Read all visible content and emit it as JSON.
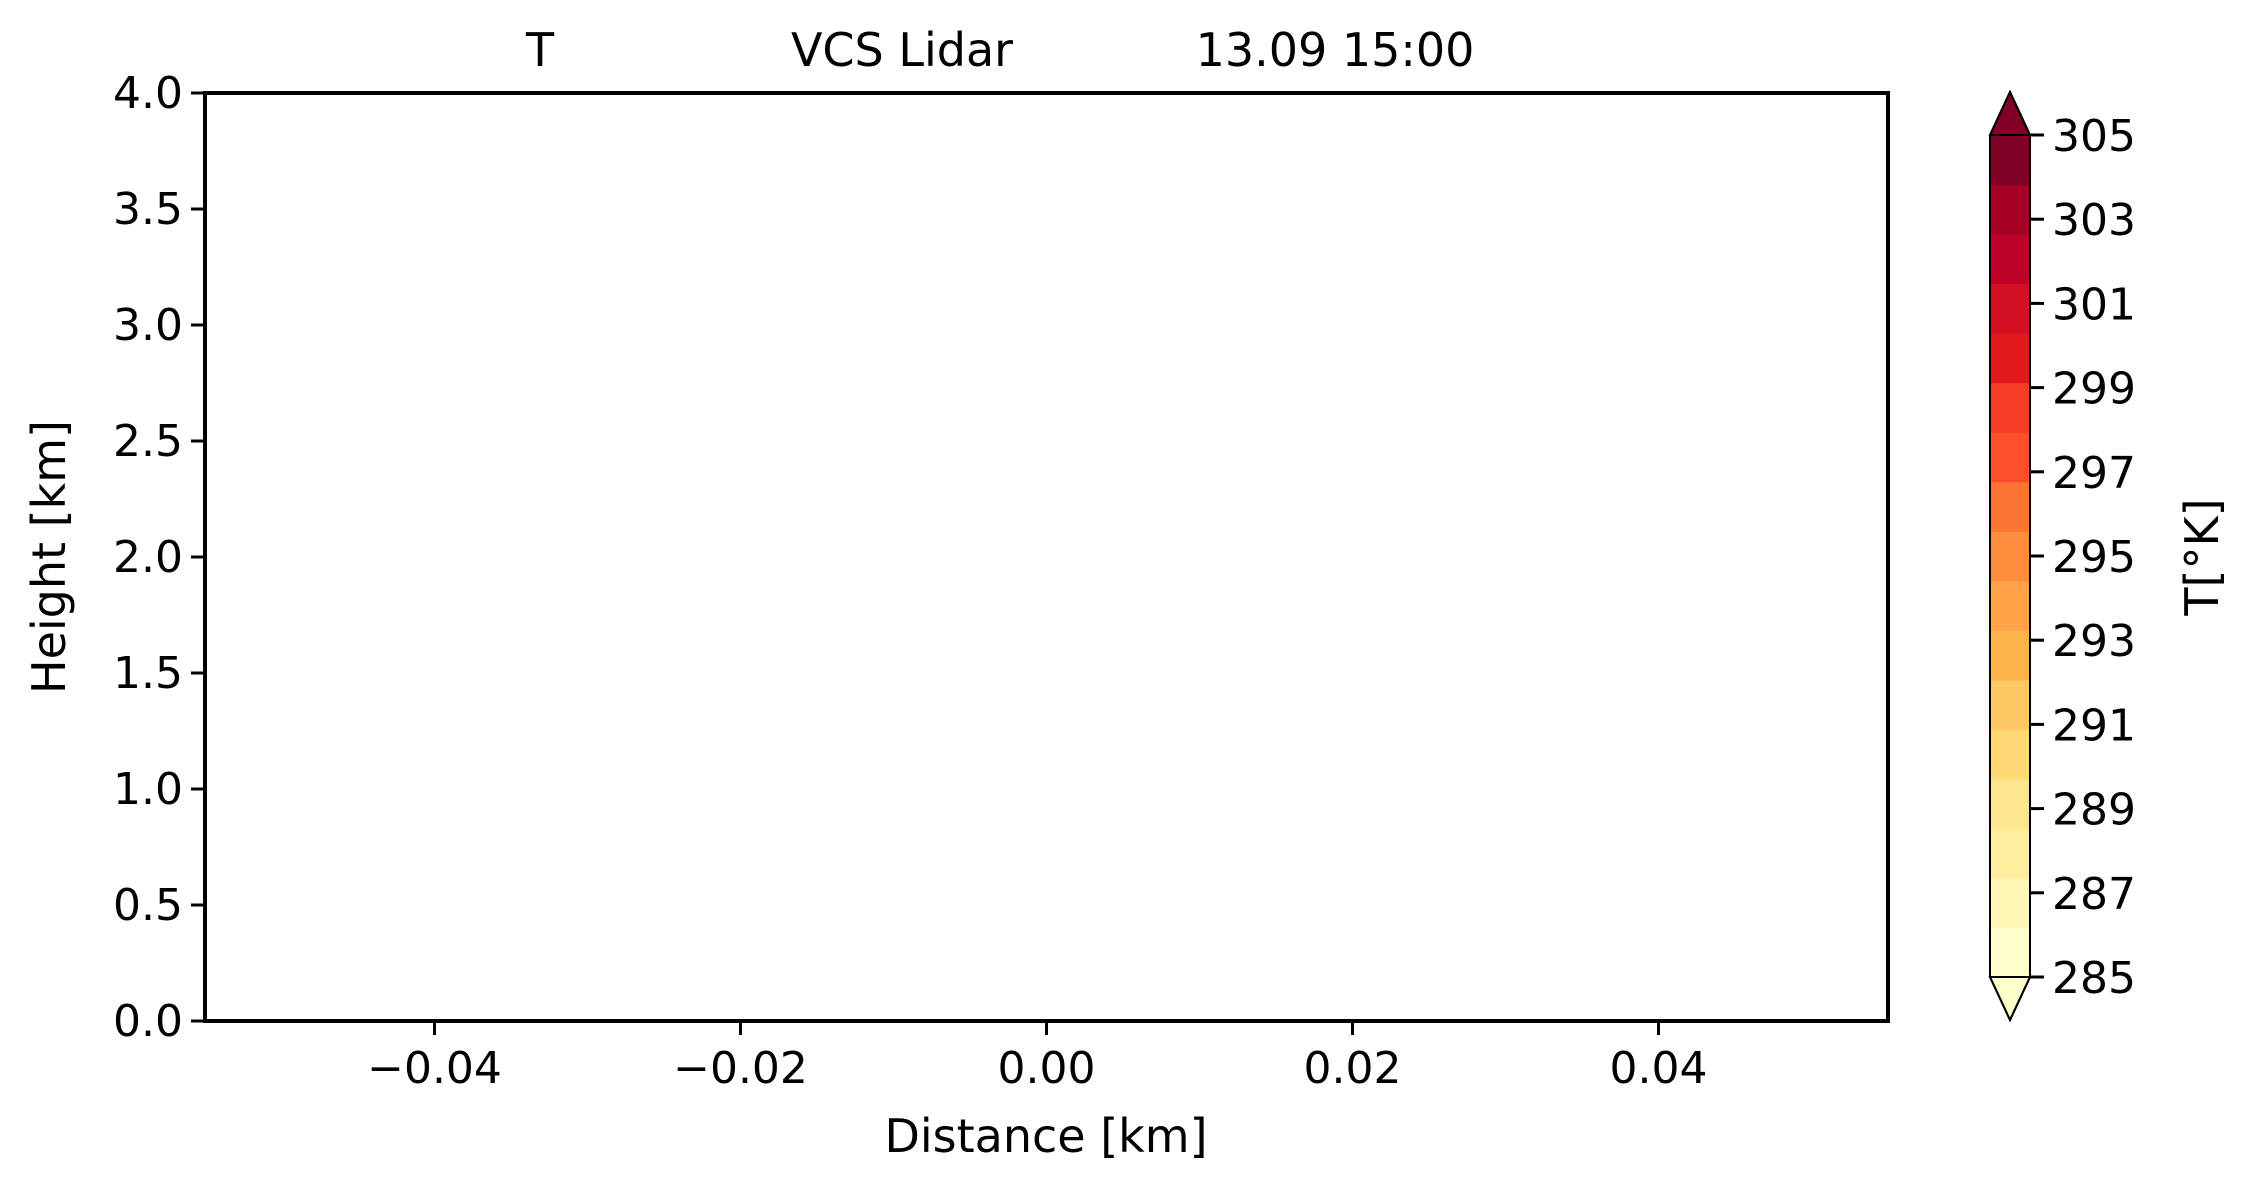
{
  "chart_data": {
    "type": "heatmap",
    "title_parts": [
      "T",
      "VCS Lidar",
      "13.09 15:00"
    ],
    "xlabel": "Distance [km]",
    "ylabel": "Height [km]",
    "xlim": [
      -0.055,
      0.055
    ],
    "ylim": [
      0.0,
      4.0
    ],
    "x_ticks": [
      "−0.04",
      "−0.02",
      "0.00",
      "0.02",
      "0.04"
    ],
    "x_tick_values": [
      -0.04,
      -0.02,
      0.0,
      0.02,
      0.04
    ],
    "y_ticks": [
      "0.0",
      "0.5",
      "1.0",
      "1.5",
      "2.0",
      "2.5",
      "3.0",
      "3.5",
      "4.0"
    ],
    "y_tick_values": [
      0.0,
      0.5,
      1.0,
      1.5,
      2.0,
      2.5,
      3.0,
      3.5,
      4.0
    ],
    "series": [],
    "colorbar": {
      "label": "T[°K]",
      "min": 285,
      "max": 305,
      "tick_values": [
        285,
        287,
        289,
        291,
        293,
        295,
        297,
        299,
        301,
        303,
        305
      ],
      "tick_labels": [
        "285",
        "287",
        "289",
        "291",
        "293",
        "295",
        "297",
        "299",
        "301",
        "303",
        "305"
      ],
      "extend": "both",
      "colormap": "YlOrRd",
      "colors": [
        "#ffffcc",
        "#fff6b6",
        "#ffeda0",
        "#fee590",
        "#fed976",
        "#fec865",
        "#feb24c",
        "#fea446",
        "#fd8d3c",
        "#fd7535",
        "#fc4e2a",
        "#f43d25",
        "#e31a1c",
        "#d50f22",
        "#bd0026",
        "#a70026",
        "#800026"
      ],
      "under_color": "#ffffcc",
      "over_color": "#800026"
    }
  }
}
